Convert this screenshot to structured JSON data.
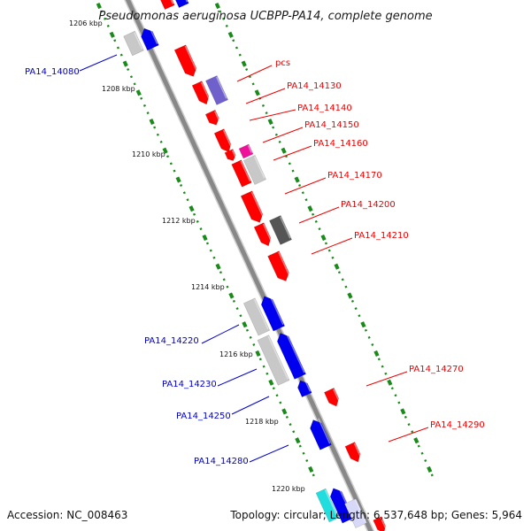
{
  "title": "Pseudomonas aeruginosa UCBPP-PA14, complete genome",
  "footer": {
    "accession": "Accession: NC_008463",
    "topology": "Topology: circular; Length: 6,537,648 bp; Genes: 5,964"
  },
  "colors": {
    "forward": "#ff0000",
    "reverse": "#0000ee",
    "grey": "#c8c8c8",
    "dark_grey": "#555555",
    "purple": "#7060cc",
    "magenta": "#ee1199",
    "cyan": "#22dddd",
    "tick": "#1a8a1a",
    "backbone": "#888888"
  },
  "ticks": [
    "1206 kbp",
    "1208 kbp",
    "1210 kbp",
    "1212 kbp",
    "1214 kbp",
    "1216 kbp",
    "1218 kbp",
    "1220 kbp"
  ],
  "labels_left": [
    "PA14_14080",
    "PA14_14220",
    "PA14_14230",
    "PA14_14250",
    "PA14_14280"
  ],
  "labels_right": [
    "pcs",
    "PA14_14130",
    "PA14_14140",
    "PA14_14150",
    "PA14_14160",
    "PA14_14170",
    "PA14_14200",
    "PA14_14210",
    "PA14_14270",
    "PA14_14290"
  ]
}
